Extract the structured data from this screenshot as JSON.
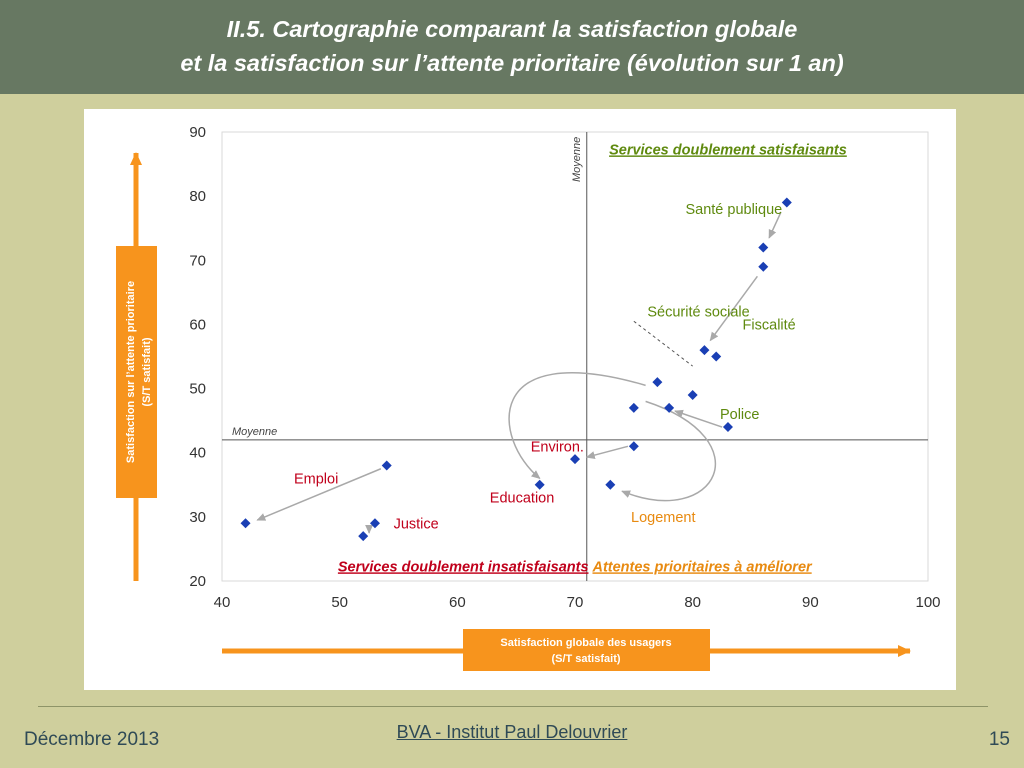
{
  "header": {
    "title_line1": "II.5. Cartographie comparant la satisfaction globale",
    "title_line2": "et la satisfaction sur l’attente prioritaire (évolution sur 1 an)"
  },
  "footer": {
    "date": "Décembre 2013",
    "organization": "BVA - Institut Paul Delouvrier",
    "page": "15"
  },
  "colors": {
    "header_bg": "#677862",
    "slide_bg": "#cfcf9d",
    "orange": "#f7941d",
    "marker": "#1a3fb4",
    "green_label": "#5f8a0f",
    "red_label": "#c0001b",
    "orange_label": "#e88a10"
  },
  "chart_data": {
    "type": "scatter",
    "xlim": [
      40,
      100
    ],
    "ylim": [
      20,
      90
    ],
    "x_ticks": [
      40,
      50,
      60,
      70,
      80,
      90,
      100
    ],
    "y_ticks": [
      20,
      30,
      40,
      50,
      60,
      70,
      80,
      90
    ],
    "x_ticks_text": [
      "40",
      "50",
      "60",
      "70",
      "80",
      "90",
      "100"
    ],
    "y_ticks_text": [
      "20",
      "30",
      "40",
      "50",
      "60",
      "70",
      "80",
      "90"
    ],
    "xlabel_line1": "Satisfaction globale des usagers",
    "xlabel_line2": "(S/T satisfait)",
    "ylabel_line1": "Satisfaction sur l’attente prioritaire",
    "ylabel_line2": "(S/T satisfait)",
    "mean_x": 71,
    "mean_y": 42,
    "mean_label": "Moyenne",
    "quadrants": {
      "top_right": "Services doublement satisfaisants",
      "bottom_left": "Services doublement insatisfaisants",
      "bottom_right": "Attentes prioritaires à améliorer"
    },
    "points": [
      {
        "x": 88,
        "y": 79
      },
      {
        "x": 86,
        "y": 72
      },
      {
        "x": 86,
        "y": 69
      },
      {
        "x": 81,
        "y": 56
      },
      {
        "x": 82,
        "y": 55
      },
      {
        "x": 77,
        "y": 51
      },
      {
        "x": 80,
        "y": 49
      },
      {
        "x": 75,
        "y": 47
      },
      {
        "x": 78,
        "y": 47
      },
      {
        "x": 83,
        "y": 44
      },
      {
        "x": 75,
        "y": 41
      },
      {
        "x": 70,
        "y": 39
      },
      {
        "x": 54,
        "y": 38
      },
      {
        "x": 67,
        "y": 35
      },
      {
        "x": 73,
        "y": 35
      },
      {
        "x": 53,
        "y": 29
      },
      {
        "x": 42,
        "y": 29
      },
      {
        "x": 52,
        "y": 27
      }
    ],
    "labels": [
      {
        "text": "Santé publique",
        "x": 83.5,
        "y": 78,
        "color": "green"
      },
      {
        "text": "Sécurité sociale",
        "x": 80.5,
        "y": 62,
        "color": "green"
      },
      {
        "text": "Fiscalité",
        "x": 86.5,
        "y": 60,
        "color": "green"
      },
      {
        "text": "Police",
        "x": 84,
        "y": 46,
        "color": "green"
      },
      {
        "text": "Environ.",
        "x": 68.5,
        "y": 41,
        "color": "red"
      },
      {
        "text": "Education",
        "x": 65.5,
        "y": 33,
        "color": "red"
      },
      {
        "text": "Emploi",
        "x": 48,
        "y": 36,
        "color": "red"
      },
      {
        "text": "Justice",
        "x": 56.5,
        "y": 29,
        "color": "red"
      },
      {
        "text": "Logement",
        "x": 77.5,
        "y": 30,
        "color": "orange"
      }
    ],
    "arrows": [
      {
        "type": "straight",
        "from": [
          85.5,
          67.5
        ],
        "to": [
          81.5,
          57.5
        ]
      },
      {
        "type": "straight",
        "from": [
          87.5,
          77.5
        ],
        "to": [
          86.5,
          73.5
        ]
      },
      {
        "type": "straight",
        "from": [
          82.5,
          44
        ],
        "to": [
          78.5,
          46.5
        ]
      },
      {
        "type": "straight",
        "from": [
          74.5,
          41
        ],
        "to": [
          71,
          39.3
        ]
      },
      {
        "type": "straight",
        "from": [
          53.5,
          37.5
        ],
        "to": [
          43,
          29.5
        ]
      },
      {
        "type": "straight",
        "from": [
          52.5,
          28.5
        ],
        "to": [
          52.5,
          27.5
        ]
      },
      {
        "type": "dashed",
        "from": [
          75,
          60.5
        ],
        "to": [
          80,
          53.5
        ]
      },
      {
        "type": "curve",
        "from": [
          76,
          50.5
        ],
        "c1": [
          62,
          58
        ],
        "c2": [
          63,
          42
        ],
        "to": [
          67,
          36
        ]
      },
      {
        "type": "curve",
        "from": [
          76,
          48
        ],
        "c1": [
          86,
          42
        ],
        "c2": [
          82,
          28
        ],
        "to": [
          74,
          34
        ]
      }
    ]
  }
}
